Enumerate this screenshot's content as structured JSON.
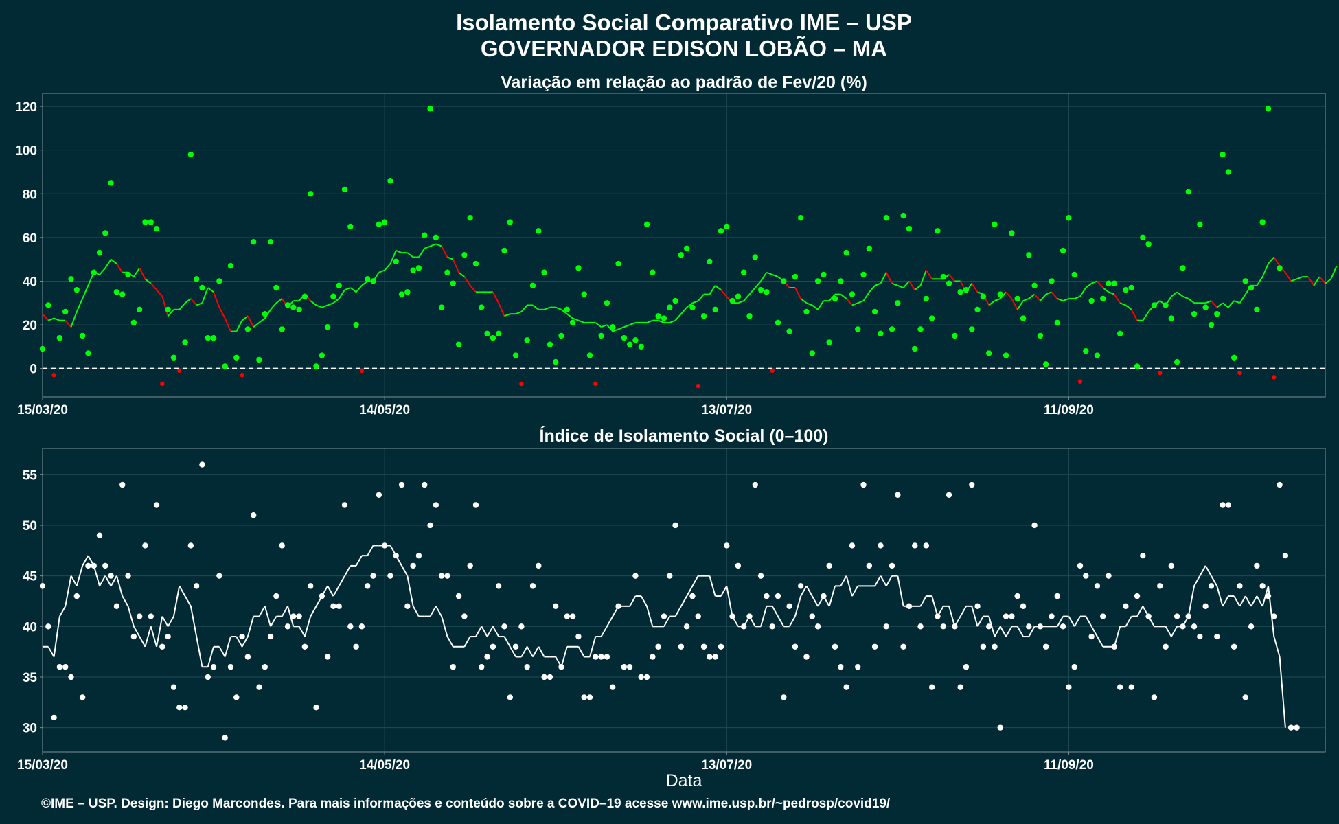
{
  "title_line1": "Isolamento Social Comparativo IME – USP",
  "title_line2": "GOVERNADOR EDISON LOBÃO – MA",
  "xlabel": "Data",
  "footer": "©IME – USP. Design: Diego Marcondes. Para mais informações e conteúdo sobre a COVID–19 acesse www.ime.usp.br/~pedrosp/covid19/",
  "colors": {
    "background": "#022a35",
    "positive": "#00ff00",
    "negative": "#ff0000",
    "index": "#ffffff",
    "grid": "#1f4a55"
  },
  "chart_data": [
    {
      "type": "scatter",
      "title": "Variação em relação ao padrão de Fev/20 (%)",
      "start_date": "15/03/20",
      "x_tick_labels": [
        "15/03/20",
        "14/05/20",
        "13/07/20",
        "11/09/20"
      ],
      "yticks": [
        0,
        20,
        40,
        60,
        80,
        100,
        120
      ],
      "ylim": [
        -13,
        126
      ],
      "xlim": [
        0,
        225
      ],
      "reference_line": 0,
      "series": [
        {
          "kind": "daily_points",
          "values": [
            9,
            29,
            -3,
            14,
            26,
            41,
            36,
            15,
            7,
            44,
            53,
            62,
            85,
            35,
            34,
            43,
            21,
            27,
            67,
            67,
            64,
            -7,
            27,
            5,
            -1,
            12,
            98,
            41,
            37,
            14,
            14,
            40,
            1,
            47,
            5,
            -3,
            18,
            58,
            4,
            25,
            58,
            37,
            18,
            29,
            28,
            27,
            33,
            80,
            1,
            6,
            19,
            33,
            38,
            82,
            65,
            20,
            -1,
            41,
            40,
            66,
            67,
            86,
            49,
            34,
            35,
            45,
            46,
            61,
            119,
            60,
            28,
            44,
            39,
            11,
            52,
            69,
            48,
            28,
            16,
            14,
            16,
            54,
            67,
            6,
            -7,
            13,
            38,
            63,
            44,
            11,
            3,
            15,
            27,
            21,
            46,
            34,
            6,
            -7,
            15,
            30,
            19,
            48,
            14,
            11,
            13,
            10,
            66,
            44,
            24,
            23,
            28,
            31,
            52,
            55,
            28,
            -8,
            24,
            49,
            27,
            63,
            65,
            31,
            33,
            44,
            24,
            51,
            36,
            35,
            -1,
            21,
            40,
            17,
            42,
            69,
            26,
            7,
            40,
            43,
            12,
            32,
            40,
            53,
            34,
            18,
            43,
            55,
            26,
            16,
            69,
            18,
            30,
            70,
            64,
            9,
            18,
            32,
            23,
            63,
            42,
            39,
            15,
            35,
            36,
            18,
            27,
            33,
            7,
            66,
            34,
            6,
            62,
            32,
            23,
            52,
            38,
            15,
            2,
            40,
            21,
            54,
            69,
            43,
            -6,
            8,
            31,
            6,
            32,
            39,
            39,
            16,
            36,
            37,
            1,
            60,
            57,
            29,
            -2,
            29,
            23,
            3,
            46,
            81,
            25,
            66,
            28,
            20,
            25,
            98,
            90,
            5,
            -2,
            40,
            37,
            27,
            67,
            119,
            -4,
            46
          ]
        },
        {
          "kind": "moving_average",
          "values": [
            25,
            22,
            23,
            22,
            22,
            19,
            26,
            32,
            38,
            44,
            43,
            46,
            50,
            48,
            44,
            44,
            42,
            46,
            41,
            39,
            36,
            33,
            24,
            27,
            27,
            30,
            32,
            29,
            30,
            37,
            35,
            28,
            23,
            17,
            17,
            22,
            24,
            19,
            21,
            23,
            27,
            30,
            32,
            28,
            31,
            31,
            34,
            31,
            29,
            28,
            29,
            30,
            32,
            36,
            37,
            35,
            38,
            40,
            40,
            44,
            45,
            48,
            54,
            53,
            53,
            51,
            51,
            55,
            56,
            57,
            56,
            51,
            50,
            44,
            42,
            38,
            35,
            35,
            35,
            35,
            30,
            24,
            25,
            25,
            26,
            29,
            29,
            27,
            27,
            28,
            28,
            27,
            25,
            23,
            22,
            21,
            21,
            21,
            19,
            20,
            17,
            18,
            19,
            20,
            21,
            21,
            21,
            22,
            22,
            21,
            21,
            22,
            25,
            28,
            30,
            31,
            34,
            34,
            38,
            36,
            33,
            30,
            30,
            31,
            34,
            37,
            40,
            44,
            43,
            42,
            40,
            37,
            37,
            32,
            30,
            29,
            27,
            31,
            31,
            34,
            34,
            32,
            29,
            30,
            31,
            35,
            38,
            39,
            44,
            39,
            38,
            37,
            40,
            36,
            38,
            45,
            41,
            41,
            41,
            43,
            40,
            40,
            35,
            39,
            35,
            34,
            29,
            31,
            32,
            35,
            32,
            27,
            31,
            32,
            34,
            31,
            34,
            35,
            32,
            31,
            32,
            32,
            33,
            37,
            39,
            40,
            37,
            35,
            34,
            30,
            29,
            27,
            22,
            22,
            26,
            29,
            31,
            29,
            33,
            35,
            33,
            32,
            30,
            30,
            30,
            31,
            28,
            30,
            28,
            31,
            30,
            34,
            38,
            38,
            42,
            48,
            51,
            47,
            44,
            40,
            41,
            42,
            42,
            38,
            42,
            39,
            41,
            47
          ]
        }
      ]
    },
    {
      "type": "scatter",
      "title": "Índice de Isolamento Social (0–100)",
      "start_date": "15/03/20",
      "x_tick_labels": [
        "15/03/20",
        "14/05/20",
        "13/07/20",
        "11/09/20"
      ],
      "yticks": [
        30,
        35,
        40,
        45,
        50,
        55
      ],
      "ylim": [
        27.6,
        57.6
      ],
      "xlim": [
        0,
        225
      ],
      "series": [
        {
          "kind": "daily_points",
          "values": [
            44,
            40,
            31,
            36,
            36,
            35,
            43,
            33,
            46,
            46,
            49,
            46,
            45,
            42,
            54,
            45,
            39,
            41,
            48,
            41,
            52,
            38,
            39,
            34,
            32,
            32,
            48,
            44,
            56,
            35,
            36,
            45,
            29,
            36,
            33,
            39,
            37,
            51,
            34,
            36,
            39,
            43,
            48,
            40,
            41,
            41,
            38,
            44,
            32,
            43,
            37,
            42,
            42,
            52,
            40,
            38,
            40,
            44,
            45,
            53,
            48,
            45,
            47,
            54,
            42,
            46,
            47,
            54,
            50,
            52,
            45,
            45,
            36,
            43,
            41,
            46,
            52,
            36,
            37,
            38,
            44,
            40,
            33,
            38,
            40,
            36,
            44,
            46,
            35,
            35,
            42,
            36,
            41,
            41,
            39,
            33,
            33,
            37,
            37,
            37,
            34,
            42,
            36,
            36,
            45,
            35,
            35,
            37,
            38,
            41,
            45,
            50,
            38,
            40,
            43,
            41,
            38,
            37,
            37,
            38,
            48,
            41,
            46,
            40,
            41,
            54,
            45,
            43,
            40,
            43,
            33,
            42,
            38,
            44,
            37,
            41,
            40,
            43,
            46,
            38,
            36,
            34,
            48,
            36,
            54,
            46,
            38,
            48,
            40,
            46,
            53,
            38,
            42,
            48,
            40,
            48,
            34,
            41,
            40,
            53,
            40,
            34,
            36,
            54,
            42,
            38,
            40,
            38,
            30,
            41,
            41,
            43,
            42,
            40,
            50,
            40,
            38,
            41,
            43,
            40,
            34,
            36,
            46,
            45,
            39,
            44,
            41,
            45,
            38,
            34,
            42,
            34,
            43,
            47,
            41,
            33,
            44,
            38,
            46,
            41,
            40,
            41,
            40,
            39,
            42,
            44,
            39,
            52,
            52,
            38,
            44,
            33,
            40,
            46,
            44,
            43,
            41,
            54,
            47,
            30,
            30
          ]
        },
        {
          "kind": "moving_average",
          "values": [
            38,
            38,
            37,
            41,
            42,
            45,
            44,
            46,
            47,
            46,
            44,
            45,
            44,
            45,
            43,
            42,
            40,
            39,
            38,
            40,
            38,
            41,
            40,
            41,
            44,
            43,
            42,
            39,
            36,
            36,
            38,
            38,
            37,
            39,
            39,
            38,
            39,
            41,
            41,
            42,
            40,
            41,
            41,
            42,
            40,
            40,
            39,
            41,
            42,
            43,
            44,
            43,
            44,
            45,
            46,
            46,
            47,
            47,
            48,
            48,
            48,
            48,
            47,
            46,
            45,
            42,
            41,
            41,
            41,
            42,
            41,
            39,
            38,
            38,
            38,
            39,
            39,
            40,
            39,
            40,
            39,
            39,
            38,
            37,
            37,
            38,
            37,
            38,
            37,
            37,
            37,
            36,
            38,
            38,
            38,
            37,
            37,
            39,
            39,
            40,
            41,
            42,
            42,
            42,
            43,
            43,
            42,
            40,
            40,
            40,
            41,
            41,
            42,
            43,
            44,
            45,
            45,
            45,
            43,
            43,
            44,
            41,
            40,
            40,
            41,
            40,
            40,
            42,
            42,
            41,
            40,
            40,
            41,
            43,
            44,
            43,
            42,
            43,
            42,
            44,
            44,
            45,
            43,
            44,
            44,
            44,
            44,
            45,
            44,
            45,
            45,
            42,
            42,
            42,
            42,
            43,
            43,
            41,
            42,
            42,
            40,
            41,
            42,
            42,
            40,
            41,
            41,
            39,
            40,
            39,
            40,
            40,
            39,
            39,
            40,
            40,
            40,
            40,
            40,
            41,
            41,
            40,
            41,
            41,
            40,
            39,
            38,
            38,
            38,
            40,
            40,
            41,
            41,
            42,
            41,
            40,
            40,
            40,
            39,
            40,
            40,
            41,
            44,
            45,
            46,
            45,
            44,
            42,
            43,
            43,
            42,
            43,
            42,
            43,
            42,
            44,
            39,
            37,
            30
          ]
        }
      ]
    }
  ]
}
